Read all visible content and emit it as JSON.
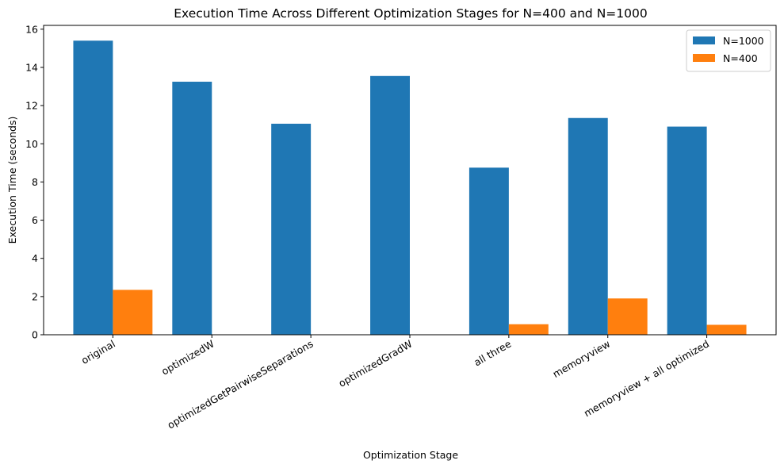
{
  "chart_data": {
    "type": "bar",
    "title": "Execution Time Across Different Optimization Stages for N=400 and N=1000",
    "xlabel": "Optimization Stage",
    "ylabel": "Execution Time (seconds)",
    "categories": [
      "original",
      "optimizedW",
      "optimizedGetPairwiseSeparations",
      "optimizedGradW",
      "all three",
      "memoryview",
      "memoryview + all optimized"
    ],
    "series": [
      {
        "name": "N=1000",
        "color": "#1f77b4",
        "values": [
          15.4,
          13.25,
          11.05,
          13.55,
          8.75,
          11.35,
          10.9
        ]
      },
      {
        "name": "N=400",
        "color": "#ff7f0e",
        "values": [
          2.35,
          null,
          null,
          null,
          0.55,
          1.9,
          0.52
        ]
      }
    ],
    "ylim": [
      0,
      16.2
    ],
    "yticks": [
      0,
      2,
      4,
      6,
      8,
      10,
      12,
      14,
      16
    ],
    "grid": false,
    "legend_position": "top-right"
  }
}
